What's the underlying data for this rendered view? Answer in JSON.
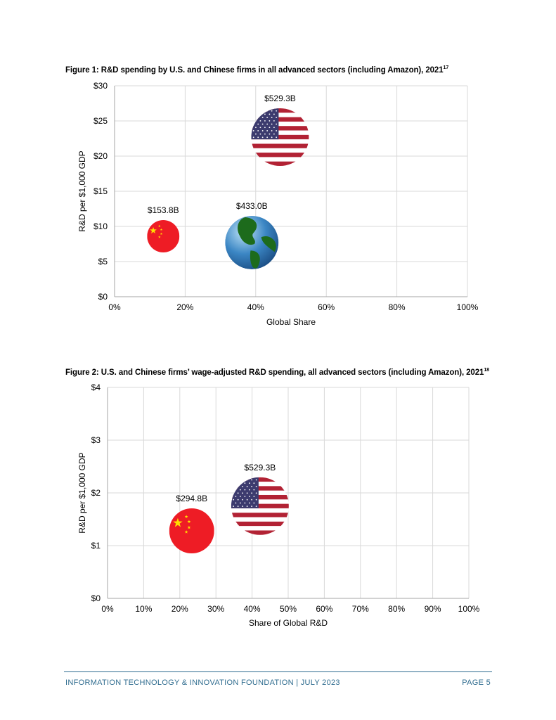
{
  "figures": [
    {
      "title": "Figure 1: R&D spending by U.S. and Chinese firms in all advanced sectors (including Amazon), 2021",
      "footnote": "17"
    },
    {
      "title": "Figure 2: U.S. and Chinese firms’ wage-adjusted R&D spending, all advanced sectors (including Amazon), 2021",
      "footnote": "18"
    }
  ],
  "chart_data": [
    {
      "type": "scatter",
      "xlabel": "Global Share",
      "ylabel": "R&D per $1,000 GDP",
      "xlim": [
        0,
        100
      ],
      "ylim": [
        0,
        30
      ],
      "x_ticks": [
        "0%",
        "20%",
        "40%",
        "60%",
        "80%",
        "100%"
      ],
      "y_ticks": [
        "$0",
        "$5",
        "$10",
        "$15",
        "$20",
        "$25",
        "$30"
      ],
      "grid": true,
      "series": [
        {
          "x": 13.8,
          "y": 8.6,
          "label": "$153.8B",
          "icon": "china-flag-icon",
          "color": "#e8262b"
        },
        {
          "x": 38.9,
          "y": 7.7,
          "label": "$433.0B",
          "icon": "globe-icon",
          "color": "#3b7fbe"
        },
        {
          "x": 46.9,
          "y": 22.7,
          "label": "$529.3B",
          "icon": "us-flag-icon",
          "color": "#b22234"
        }
      ]
    },
    {
      "type": "scatter",
      "xlabel": "Share of Global R&D",
      "ylabel": "R&D per $1,000 GDP",
      "xlim": [
        0,
        100
      ],
      "ylim": [
        0,
        4
      ],
      "x_ticks": [
        "0%",
        "10%",
        "20%",
        "30%",
        "40%",
        "50%",
        "60%",
        "70%",
        "80%",
        "90%",
        "100%"
      ],
      "y_ticks": [
        "$0",
        "$1",
        "$2",
        "$3",
        "$4"
      ],
      "grid": true,
      "series": [
        {
          "x": 23.3,
          "y": 1.28,
          "label": "$294.8B",
          "icon": "china-flag-icon",
          "color": "#e8262b"
        },
        {
          "x": 42.2,
          "y": 1.75,
          "label": "$529.3B",
          "icon": "us-flag-icon",
          "color": "#b22234"
        }
      ]
    }
  ],
  "footer": {
    "left": "INFORMATION TECHNOLOGY & INNOVATION FOUNDATION  |  JULY 2023",
    "right": "PAGE 5"
  }
}
